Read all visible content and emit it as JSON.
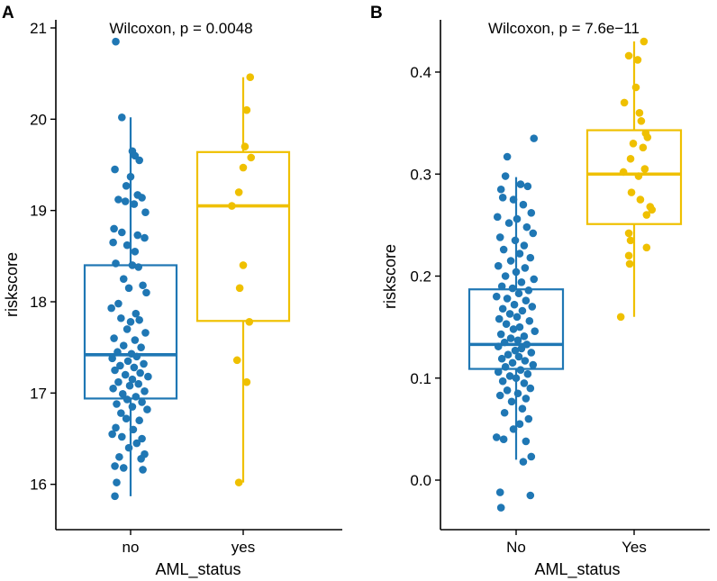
{
  "chart_data": [
    {
      "panel": "A",
      "type": "box",
      "annotation": "Wilcoxon, p = 0.0048",
      "xlabel": "AML_status",
      "ylabel": "riskscore",
      "ylim": [
        15.75,
        21.1
      ],
      "yticks": [
        16,
        17,
        18,
        19,
        20,
        21
      ],
      "categories": [
        "no",
        "yes"
      ],
      "colors": [
        "#1f77b4",
        "#efc000"
      ],
      "boxes": [
        {
          "category": "no",
          "whisker_low": 15.87,
          "q1": 16.94,
          "median": 17.42,
          "q3": 18.4,
          "whisker_high": 20.02
        },
        {
          "category": "yes",
          "whisker_low": 16.02,
          "q1": 17.79,
          "median": 19.05,
          "q3": 19.64,
          "whisker_high": 20.46
        }
      ],
      "points": [
        [
          [
            -0.17,
            20.85
          ],
          [
            -0.1,
            20.02
          ],
          [
            0.02,
            19.65
          ],
          [
            0.05,
            19.6
          ],
          [
            0.1,
            19.55
          ],
          [
            -0.18,
            19.45
          ],
          [
            0.0,
            19.37
          ],
          [
            -0.05,
            19.27
          ],
          [
            0.08,
            19.17
          ],
          [
            0.13,
            19.14
          ],
          [
            -0.14,
            19.12
          ],
          [
            -0.06,
            19.1
          ],
          [
            0.04,
            19.07
          ],
          [
            0.17,
            18.98
          ],
          [
            -0.19,
            18.8
          ],
          [
            -0.1,
            18.76
          ],
          [
            0.08,
            18.73
          ],
          [
            0.16,
            18.7
          ],
          [
            -0.2,
            18.65
          ],
          [
            -0.04,
            18.62
          ],
          [
            0.05,
            18.55
          ],
          [
            -0.17,
            18.42
          ],
          [
            0.02,
            18.4
          ],
          [
            0.09,
            18.38
          ],
          [
            -0.08,
            18.25
          ],
          [
            0.14,
            18.18
          ],
          [
            -0.02,
            18.15
          ],
          [
            0.18,
            18.1
          ],
          [
            -0.14,
            17.98
          ],
          [
            -0.22,
            17.93
          ],
          [
            0.06,
            17.87
          ],
          [
            -0.11,
            17.82
          ],
          [
            0.1,
            17.8
          ],
          [
            0.0,
            17.78
          ],
          [
            -0.04,
            17.7
          ],
          [
            0.17,
            17.66
          ],
          [
            -0.19,
            17.6
          ],
          [
            0.05,
            17.58
          ],
          [
            -0.08,
            17.52
          ],
          [
            0.12,
            17.5
          ],
          [
            -0.15,
            17.45
          ],
          [
            0.01,
            17.43
          ],
          [
            0.07,
            17.4
          ],
          [
            -0.21,
            17.38
          ],
          [
            -0.03,
            17.35
          ],
          [
            0.15,
            17.32
          ],
          [
            -0.12,
            17.3
          ],
          [
            0.04,
            17.28
          ],
          [
            -0.18,
            17.25
          ],
          [
            0.11,
            17.22
          ],
          [
            -0.06,
            17.2
          ],
          [
            0.2,
            17.18
          ],
          [
            0.02,
            17.15
          ],
          [
            -0.14,
            17.12
          ],
          [
            0.09,
            17.1
          ],
          [
            -0.01,
            17.08
          ],
          [
            -0.2,
            17.05
          ],
          [
            0.16,
            17.02
          ],
          [
            -0.09,
            16.99
          ],
          [
            0.06,
            16.96
          ],
          [
            -0.04,
            16.93
          ],
          [
            0.13,
            16.9
          ],
          [
            -0.16,
            16.88
          ],
          [
            0.02,
            16.85
          ],
          [
            0.19,
            16.82
          ],
          [
            -0.11,
            16.78
          ],
          [
            -0.05,
            16.72
          ],
          [
            0.1,
            16.7
          ],
          [
            -0.17,
            16.62
          ],
          [
            0.03,
            16.6
          ],
          [
            -0.21,
            16.55
          ],
          [
            -0.1,
            16.52
          ],
          [
            0.13,
            16.5
          ],
          [
            0.07,
            16.45
          ],
          [
            -0.02,
            16.4
          ],
          [
            0.16,
            16.33
          ],
          [
            -0.13,
            16.3
          ],
          [
            0.12,
            16.28
          ],
          [
            -0.18,
            16.2
          ],
          [
            -0.08,
            16.18
          ],
          [
            0.14,
            16.16
          ],
          [
            -0.16,
            16.02
          ],
          [
            -0.18,
            15.87
          ]
        ],
        [
          [
            0.08,
            20.46
          ],
          [
            0.04,
            20.1
          ],
          [
            0.02,
            19.7
          ],
          [
            0.09,
            19.58
          ],
          [
            0.0,
            19.47
          ],
          [
            -0.05,
            19.2
          ],
          [
            -0.13,
            19.05
          ],
          [
            0.0,
            18.4
          ],
          [
            -0.04,
            18.15
          ],
          [
            0.07,
            17.78
          ],
          [
            -0.07,
            17.36
          ],
          [
            0.04,
            17.12
          ],
          [
            -0.05,
            16.02
          ]
        ]
      ]
    },
    {
      "panel": "B",
      "type": "box",
      "annotation": "Wilcoxon, p = 7.6e−11",
      "xlabel": "AML_status",
      "ylabel": "riskscore",
      "ylim": [
        -0.03,
        0.44
      ],
      "yticks": [
        0.0,
        0.1,
        0.2,
        0.3,
        0.4
      ],
      "categories": [
        "No",
        "Yes"
      ],
      "colors": [
        "#1f77b4",
        "#efc000"
      ],
      "boxes": [
        {
          "category": "No",
          "whisker_low": 0.02,
          "q1": 0.109,
          "median": 0.133,
          "q3": 0.187,
          "whisker_high": 0.297
        },
        {
          "category": "Yes",
          "whisker_low": 0.16,
          "q1": 0.251,
          "median": 0.3,
          "q3": 0.343,
          "whisker_high": 0.43
        }
      ],
      "points": [
        [
          [
            0.2,
            0.335
          ],
          [
            -0.1,
            0.317
          ],
          [
            -0.12,
            0.298
          ],
          [
            0.05,
            0.29
          ],
          [
            0.13,
            0.288
          ],
          [
            -0.17,
            0.285
          ],
          [
            -0.15,
            0.277
          ],
          [
            -0.03,
            0.275
          ],
          [
            0.08,
            0.27
          ],
          [
            0.17,
            0.262
          ],
          [
            -0.21,
            0.258
          ],
          [
            0.01,
            0.256
          ],
          [
            -0.08,
            0.252
          ],
          [
            0.12,
            0.248
          ],
          [
            0.19,
            0.242
          ],
          [
            -0.18,
            0.238
          ],
          [
            -0.01,
            0.235
          ],
          [
            0.09,
            0.23
          ],
          [
            -0.14,
            0.226
          ],
          [
            0.04,
            0.222
          ],
          [
            0.16,
            0.218
          ],
          [
            -0.06,
            0.215
          ],
          [
            -0.2,
            0.21
          ],
          [
            0.1,
            0.208
          ],
          [
            0.0,
            0.204
          ],
          [
            -0.12,
            0.2
          ],
          [
            0.2,
            0.197
          ],
          [
            0.06,
            0.194
          ],
          [
            -0.16,
            0.19
          ],
          [
            -0.04,
            0.188
          ],
          [
            0.14,
            0.186
          ],
          [
            0.03,
            0.183
          ],
          [
            -0.22,
            0.18
          ],
          [
            -0.1,
            0.178
          ],
          [
            0.11,
            0.176
          ],
          [
            -0.02,
            0.172
          ],
          [
            0.18,
            0.17
          ],
          [
            -0.15,
            0.168
          ],
          [
            0.07,
            0.166
          ],
          [
            -0.07,
            0.163
          ],
          [
            0.01,
            0.16
          ],
          [
            -0.19,
            0.158
          ],
          [
            0.15,
            0.156
          ],
          [
            -0.11,
            0.153
          ],
          [
            0.04,
            0.15
          ],
          [
            -0.03,
            0.148
          ],
          [
            0.21,
            0.146
          ],
          [
            -0.17,
            0.143
          ],
          [
            0.09,
            0.141
          ],
          [
            -0.06,
            0.139
          ],
          [
            0.02,
            0.137
          ],
          [
            -0.13,
            0.135
          ],
          [
            0.12,
            0.133
          ],
          [
            -0.2,
            0.131
          ],
          [
            0.06,
            0.129
          ],
          [
            -0.01,
            0.127
          ],
          [
            0.17,
            0.125
          ],
          [
            -0.09,
            0.123
          ],
          [
            0.03,
            0.121
          ],
          [
            -0.16,
            0.119
          ],
          [
            0.1,
            0.117
          ],
          [
            -0.04,
            0.115
          ],
          [
            0.19,
            0.113
          ],
          [
            -0.12,
            0.111
          ],
          [
            0.05,
            0.108
          ],
          [
            -0.2,
            0.106
          ],
          [
            0.13,
            0.104
          ],
          [
            -0.07,
            0.102
          ],
          [
            0.0,
            0.1
          ],
          [
            -0.15,
            0.097
          ],
          [
            0.09,
            0.095
          ],
          [
            0.16,
            0.09
          ],
          [
            -0.1,
            0.088
          ],
          [
            0.02,
            0.085
          ],
          [
            -0.18,
            0.083
          ],
          [
            0.11,
            0.08
          ],
          [
            -0.05,
            0.077
          ],
          [
            0.07,
            0.07
          ],
          [
            -0.13,
            0.066
          ],
          [
            0.14,
            0.06
          ],
          [
            0.04,
            0.055
          ],
          [
            -0.03,
            0.05
          ],
          [
            -0.22,
            0.042
          ],
          [
            0.11,
            0.038
          ],
          [
            -0.14,
            0.04
          ],
          [
            0.17,
            0.023
          ],
          [
            0.08,
            0.018
          ],
          [
            -0.18,
            -0.012
          ],
          [
            0.16,
            -0.015
          ],
          [
            -0.17,
            -0.027
          ]
        ],
        [
          [
            0.11,
            0.43
          ],
          [
            -0.06,
            0.416
          ],
          [
            0.04,
            0.412
          ],
          [
            0.02,
            0.385
          ],
          [
            -0.11,
            0.37
          ],
          [
            0.06,
            0.36
          ],
          [
            0.08,
            0.352
          ],
          [
            0.13,
            0.34
          ],
          [
            0.15,
            0.336
          ],
          [
            -0.01,
            0.33
          ],
          [
            0.1,
            0.326
          ],
          [
            -0.04,
            0.315
          ],
          [
            0.12,
            0.305
          ],
          [
            -0.12,
            0.302
          ],
          [
            0.05,
            0.298
          ],
          [
            -0.03,
            0.282
          ],
          [
            0.07,
            0.275
          ],
          [
            0.18,
            0.268
          ],
          [
            0.2,
            0.265
          ],
          [
            0.14,
            0.26
          ],
          [
            -0.06,
            0.242
          ],
          [
            -0.04,
            0.235
          ],
          [
            0.14,
            0.228
          ],
          [
            -0.06,
            0.22
          ],
          [
            -0.05,
            0.212
          ],
          [
            -0.15,
            0.16
          ]
        ]
      ]
    }
  ]
}
